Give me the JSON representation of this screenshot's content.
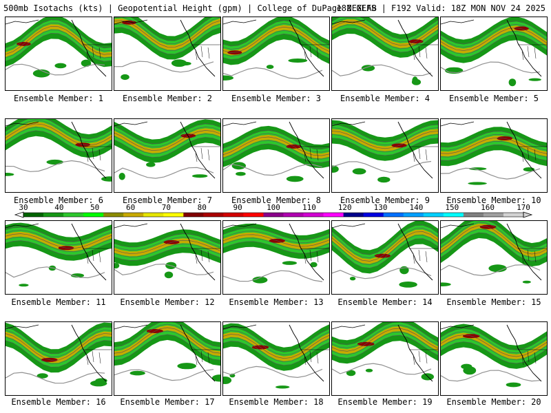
{
  "header": {
    "left": "500mb Isotachs (kts) | Geopotential Height (gpm) | College of DuPage NEXLAB",
    "right": "18Z GEFS | F192 Valid: 18Z MON NOV 24 2025"
  },
  "colorbar": {
    "ticks": [
      "30",
      "40",
      "50",
      "60",
      "70",
      "80",
      "90",
      "100",
      "110",
      "120",
      "130",
      "140",
      "150",
      "160",
      "170"
    ],
    "colors": [
      "#006400",
      "#169716",
      "#2dc72d",
      "#00ff00",
      "#8b8b00",
      "#c8aa00",
      "#e6e600",
      "#ffff00",
      "#800000",
      "#aa0000",
      "#d20000",
      "#ff0000",
      "#8b008b",
      "#b000b0",
      "#d200d2",
      "#ff00ff",
      "#00008b",
      "#0000e0",
      "#0070ff",
      "#00a0ff",
      "#00d0ff",
      "#00ffff",
      "#808080",
      "#a0a0a0",
      "#d3d3d3"
    ]
  },
  "colors": {
    "jet_weak": "#169716",
    "jet_mid": "#2dc72d",
    "jet_yellow": "#c8aa00",
    "jet_strong": "#8b0000",
    "contour": "#555555",
    "height_line": "#909090",
    "coast": "#000000"
  },
  "members": [
    {
      "label": "Ensemble Member: 1"
    },
    {
      "label": "Ensemble Member: 2"
    },
    {
      "label": "Ensemble Member: 3"
    },
    {
      "label": "Ensemble Member: 4"
    },
    {
      "label": "Ensemble Member: 5"
    },
    {
      "label": "Ensemble Member: 6"
    },
    {
      "label": "Ensemble Member: 7"
    },
    {
      "label": "Ensemble Member: 8"
    },
    {
      "label": "Ensemble Member: 9"
    },
    {
      "label": "Ensemble Member: 10"
    },
    {
      "label": "Ensemble Member: 11"
    },
    {
      "label": "Ensemble Member: 12"
    },
    {
      "label": "Ensemble Member: 13"
    },
    {
      "label": "Ensemble Member: 14"
    },
    {
      "label": "Ensemble Member: 15"
    },
    {
      "label": "Ensemble Member: 16"
    },
    {
      "label": "Ensemble Member: 17"
    },
    {
      "label": "Ensemble Member: 18"
    },
    {
      "label": "Ensemble Member: 19"
    },
    {
      "label": "Ensemble Member: 20"
    }
  ]
}
